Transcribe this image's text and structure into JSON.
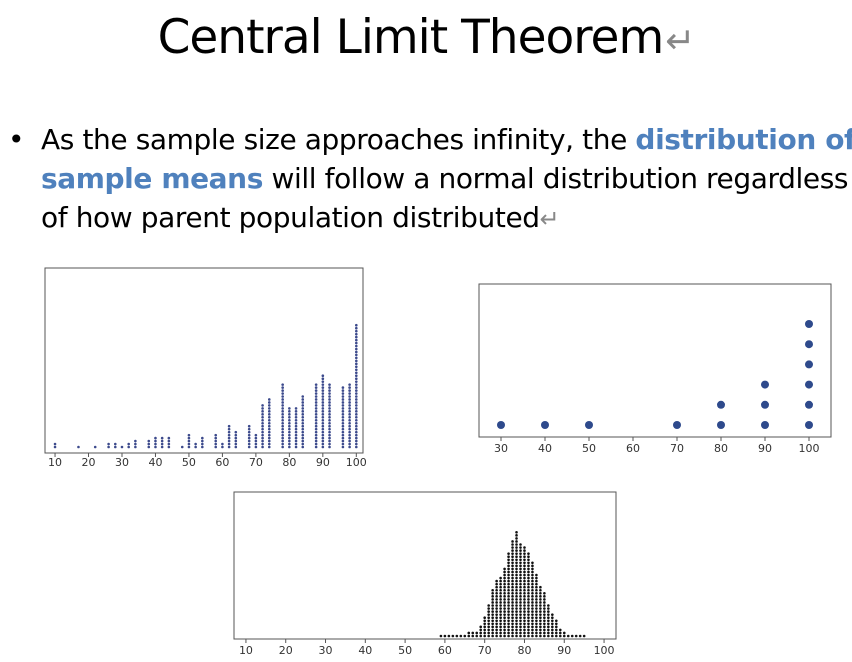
{
  "slide": {
    "title": "Central Limit Theorem",
    "return_mark": "↵",
    "bullet_symbol": "•",
    "bullet_text_1": "As the sample size approaches infinity, the ",
    "bullet_emphasis": "distribution of sample means",
    "bullet_text_2": " will follow a normal distribution regardless of how parent population distributed",
    "emphasis_color": "#4f81bd"
  },
  "chart_data": [
    {
      "type": "scatter",
      "subtype": "dot-plot",
      "marker_color": "#3c4a8c",
      "title": "",
      "xlabel": "",
      "ylabel": "",
      "xlim": [
        7,
        102
      ],
      "xticks": [
        10,
        20,
        30,
        40,
        50,
        60,
        70,
        80,
        90,
        100
      ],
      "x": [
        10,
        17,
        20,
        22,
        26,
        28,
        30,
        32,
        34,
        36,
        38,
        40,
        42,
        44,
        46,
        48,
        50,
        52,
        54,
        56,
        58,
        60,
        62,
        64,
        66,
        68,
        70,
        72,
        74,
        76,
        78,
        80,
        82,
        84,
        86,
        88,
        90,
        92,
        94,
        96,
        98,
        100
      ],
      "counts": [
        2,
        1,
        0,
        1,
        2,
        2,
        1,
        2,
        3,
        0,
        3,
        4,
        4,
        4,
        0,
        1,
        5,
        2,
        4,
        0,
        5,
        2,
        8,
        6,
        0,
        8,
        5,
        15,
        17,
        0,
        22,
        14,
        14,
        18,
        0,
        22,
        25,
        22,
        0,
        21,
        22,
        42
      ]
    },
    {
      "type": "scatter",
      "subtype": "dot-plot",
      "marker_color": "#2e4a8c",
      "title": "",
      "xlabel": "",
      "ylabel": "",
      "xlim": [
        25,
        105
      ],
      "xticks": [
        30,
        40,
        50,
        60,
        70,
        80,
        90,
        100
      ],
      "x": [
        30,
        40,
        50,
        60,
        70,
        80,
        90,
        100
      ],
      "counts": [
        1,
        1,
        1,
        0,
        1,
        2,
        3,
        6
      ]
    },
    {
      "type": "scatter",
      "subtype": "dot-plot",
      "marker_color": "#111111",
      "title": "",
      "xlabel": "",
      "ylabel": "",
      "xlim": [
        7,
        103
      ],
      "xticks": [
        10,
        20,
        30,
        40,
        50,
        60,
        70,
        80,
        90,
        100
      ],
      "x": [
        59,
        60,
        61,
        62,
        63,
        64,
        65,
        66,
        67,
        68,
        69,
        70,
        71,
        72,
        73,
        74,
        75,
        76,
        77,
        78,
        79,
        80,
        81,
        82,
        83,
        84,
        85,
        86,
        87,
        88,
        89,
        90,
        91,
        92,
        93,
        94,
        95
      ],
      "counts": [
        1,
        1,
        1,
        1,
        1,
        1,
        1,
        2,
        2,
        2,
        4,
        7,
        11,
        16,
        19,
        20,
        23,
        28,
        32,
        35,
        31,
        30,
        28,
        25,
        21,
        17,
        15,
        11,
        8,
        6,
        3,
        2,
        1,
        1,
        1,
        1,
        1
      ]
    }
  ]
}
